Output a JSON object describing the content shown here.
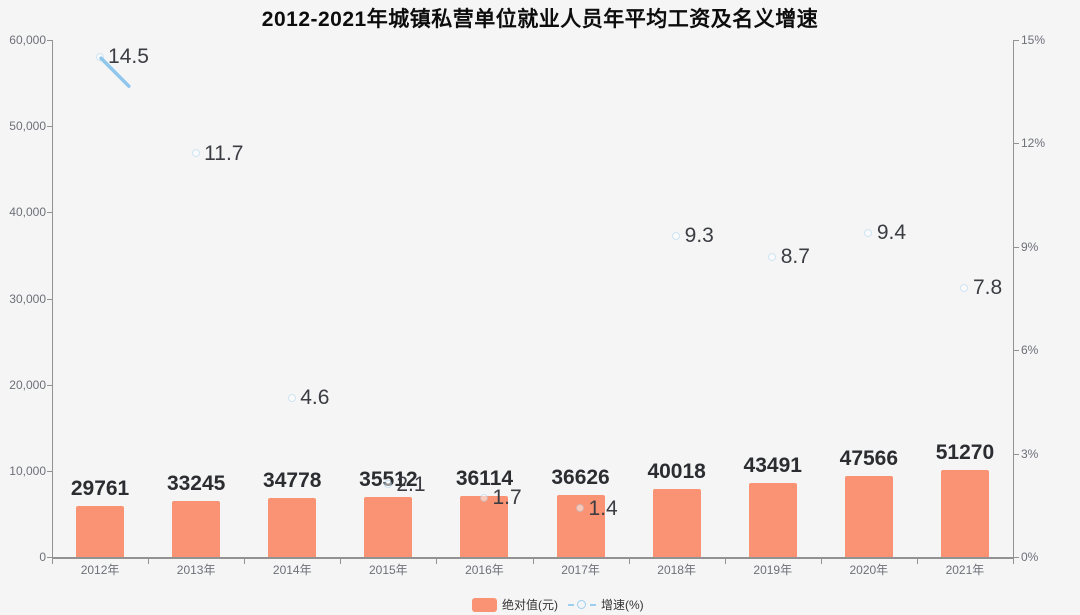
{
  "title": "2012-2021年城镇私营单位就业人员年平均工资及名义增速",
  "legend": {
    "bar_label": "绝对值(元)",
    "line_label": "增速(%)"
  },
  "colors": {
    "bar": "#fa9373",
    "line": "#8fc6ec",
    "axis": "#929292",
    "axis_text": "#6e7079"
  },
  "chart_data": {
    "type": "bar",
    "title": "2012-2021年城镇私营单位就业人员年平均工资及名义增速",
    "categories": [
      "2012年",
      "2013年",
      "2014年",
      "2015年",
      "2016年",
      "2017年",
      "2018年",
      "2019年",
      "2020年",
      "2021年"
    ],
    "series": [
      {
        "name": "绝对值(元)",
        "type": "bar",
        "axis": "left",
        "values": [
          29761,
          33245,
          34778,
          35512,
          36114,
          36626,
          40018,
          43491,
          47566,
          51270
        ]
      },
      {
        "name": "增速(%)",
        "type": "line",
        "axis": "right",
        "values": [
          14.5,
          11.7,
          4.6,
          2.1,
          1.7,
          1.4,
          9.3,
          8.7,
          9.4,
          7.8
        ]
      }
    ],
    "left_axis": {
      "tick_labels": [
        "0",
        "10,000",
        "20,000",
        "30,000",
        "40,000",
        "50,000",
        "60,000"
      ],
      "min": 0,
      "max": 60000,
      "step": 10000
    },
    "right_axis": {
      "tick_labels": [
        "0%",
        "3%",
        "6%",
        "9%",
        "12%",
        "15%"
      ],
      "min": 0,
      "max": 15,
      "step": 3
    },
    "grid": false,
    "legend_position": "bottom"
  }
}
